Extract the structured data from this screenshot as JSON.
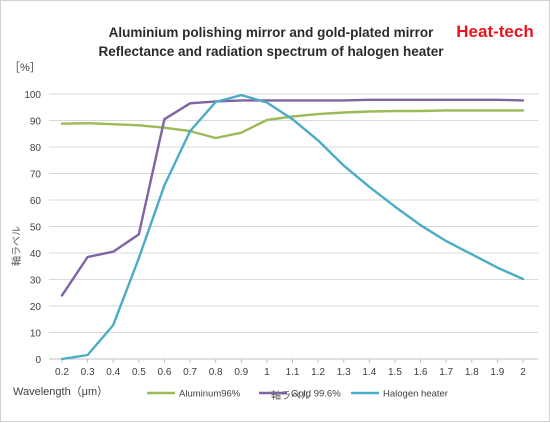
{
  "brand": {
    "label": "Heat-tech",
    "color": "#e8141e"
  },
  "chart_data": {
    "type": "line",
    "title": "Aluminium polishing mirror and gold-plated mirror",
    "subtitle": "Reflectance and radiation  spectrum of halogen heater",
    "unit_label": "［%］",
    "xlabel": "Wavelength（μm）",
    "ylabel": "軸ラベル",
    "overlapping_axis_label": "軸ラベル",
    "x": [
      0.2,
      0.3,
      0.4,
      0.5,
      0.6,
      0.7,
      0.8,
      0.9,
      1.0,
      1.1,
      1.2,
      1.3,
      1.4,
      1.5,
      1.6,
      1.7,
      1.8,
      1.9,
      2.0
    ],
    "x_tick_labels": [
      "0.2",
      "0.3",
      "0.4",
      "0.5",
      "0.6",
      "0.7",
      "0.8",
      "0.9",
      "1",
      "1.1",
      "1.2",
      "1.3",
      "1.4",
      "1.5",
      "1.6",
      "1.7",
      "1.8",
      "1.9",
      "2"
    ],
    "ylim": [
      0,
      100
    ],
    "y_ticks": [
      0,
      10,
      20,
      30,
      40,
      50,
      60,
      70,
      80,
      90,
      100
    ],
    "grid": "horizontal",
    "legend": "bottom",
    "series": [
      {
        "name": "Aluminum96%",
        "color": "#9bbb59",
        "points": [
          [
            0.2,
            88.8
          ],
          [
            0.3,
            89.0
          ],
          [
            0.4,
            88.6
          ],
          [
            0.5,
            88.2
          ],
          [
            0.6,
            87.3
          ],
          [
            0.7,
            86.0
          ],
          [
            0.8,
            83.4
          ],
          [
            0.9,
            85.4
          ],
          [
            1.0,
            90.2
          ],
          [
            1.1,
            91.5
          ],
          [
            1.2,
            92.4
          ],
          [
            1.3,
            93.0
          ],
          [
            1.4,
            93.4
          ],
          [
            1.5,
            93.6
          ],
          [
            1.6,
            93.6
          ],
          [
            1.7,
            93.8
          ],
          [
            1.8,
            93.8
          ],
          [
            1.9,
            93.8
          ],
          [
            2.0,
            93.8
          ]
        ]
      },
      {
        "name": "Gold 99.6%",
        "color": "#8064a2",
        "points": [
          [
            0.2,
            24.0
          ],
          [
            0.3,
            38.5
          ],
          [
            0.4,
            40.5
          ],
          [
            0.5,
            47.0
          ],
          [
            0.6,
            90.5
          ],
          [
            0.7,
            96.5
          ],
          [
            0.8,
            97.2
          ],
          [
            0.9,
            97.6
          ],
          [
            1.0,
            97.6
          ],
          [
            1.1,
            97.6
          ],
          [
            1.2,
            97.6
          ],
          [
            1.3,
            97.6
          ],
          [
            1.4,
            97.8
          ],
          [
            1.5,
            97.8
          ],
          [
            1.6,
            97.8
          ],
          [
            1.7,
            97.8
          ],
          [
            1.8,
            97.8
          ],
          [
            1.9,
            97.8
          ],
          [
            2.0,
            97.6
          ]
        ]
      },
      {
        "name": "Halogen heater",
        "color": "#4bacc6",
        "points": [
          [
            0.2,
            0.0
          ],
          [
            0.3,
            1.5
          ],
          [
            0.4,
            12.8
          ],
          [
            0.5,
            38.0
          ],
          [
            0.6,
            65.5
          ],
          [
            0.7,
            86.0
          ],
          [
            0.8,
            97.0
          ],
          [
            0.9,
            99.6
          ],
          [
            1.0,
            96.8
          ],
          [
            1.1,
            90.5
          ],
          [
            1.2,
            82.5
          ],
          [
            1.3,
            73.0
          ],
          [
            1.4,
            65.0
          ],
          [
            1.5,
            57.5
          ],
          [
            1.6,
            50.5
          ],
          [
            1.7,
            44.5
          ],
          [
            1.8,
            39.5
          ],
          [
            1.9,
            34.5
          ],
          [
            2.0,
            30.2
          ]
        ]
      }
    ]
  }
}
